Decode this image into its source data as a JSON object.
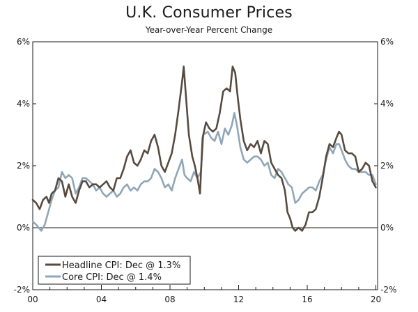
{
  "chart_data": {
    "type": "line",
    "title": "U.K. Consumer Prices",
    "subtitle": "Year-over-Year Percent Change",
    "xlabel": "",
    "ylabel": "",
    "xlim": [
      2000,
      2020.1
    ],
    "ylim": [
      -2,
      6
    ],
    "y_ticks": [
      6,
      4,
      2,
      0,
      -2
    ],
    "y_tick_labels": [
      "6%",
      "4%",
      "2%",
      "0%",
      "-2%"
    ],
    "x_ticks": [
      2000,
      2004,
      2008,
      2012,
      2016,
      2020
    ],
    "x_tick_labels": [
      "00",
      "04",
      "08",
      "12",
      "16",
      "20"
    ],
    "legend_position": "bottom-left",
    "series": [
      {
        "name": "Headline CPI: Dec @ 1.3%",
        "color": "#574a3f",
        "points": [
          [
            2000.0,
            0.9
          ],
          [
            2000.2,
            0.8
          ],
          [
            2000.4,
            0.6
          ],
          [
            2000.6,
            0.9
          ],
          [
            2000.8,
            1.0
          ],
          [
            2000.95,
            0.8
          ],
          [
            2001.1,
            1.1
          ],
          [
            2001.3,
            1.2
          ],
          [
            2001.5,
            1.6
          ],
          [
            2001.7,
            1.5
          ],
          [
            2001.9,
            1.0
          ],
          [
            2002.1,
            1.4
          ],
          [
            2002.3,
            1.0
          ],
          [
            2002.5,
            0.8
          ],
          [
            2002.7,
            1.2
          ],
          [
            2002.9,
            1.5
          ],
          [
            2003.1,
            1.5
          ],
          [
            2003.3,
            1.3
          ],
          [
            2003.5,
            1.4
          ],
          [
            2003.7,
            1.4
          ],
          [
            2003.9,
            1.3
          ],
          [
            2004.1,
            1.4
          ],
          [
            2004.3,
            1.5
          ],
          [
            2004.5,
            1.3
          ],
          [
            2004.7,
            1.2
          ],
          [
            2004.9,
            1.6
          ],
          [
            2005.1,
            1.6
          ],
          [
            2005.3,
            1.9
          ],
          [
            2005.5,
            2.3
          ],
          [
            2005.7,
            2.5
          ],
          [
            2005.9,
            2.1
          ],
          [
            2006.1,
            2.0
          ],
          [
            2006.3,
            2.2
          ],
          [
            2006.5,
            2.5
          ],
          [
            2006.7,
            2.4
          ],
          [
            2006.9,
            2.8
          ],
          [
            2007.1,
            3.0
          ],
          [
            2007.3,
            2.6
          ],
          [
            2007.5,
            2.0
          ],
          [
            2007.7,
            1.8
          ],
          [
            2007.9,
            2.1
          ],
          [
            2008.1,
            2.4
          ],
          [
            2008.3,
            3.0
          ],
          [
            2008.5,
            3.8
          ],
          [
            2008.7,
            4.7
          ],
          [
            2008.8,
            5.2
          ],
          [
            2008.95,
            4.1
          ],
          [
            2009.1,
            3.0
          ],
          [
            2009.3,
            2.3
          ],
          [
            2009.45,
            2.0
          ],
          [
            2009.6,
            1.6
          ],
          [
            2009.75,
            1.1
          ],
          [
            2009.9,
            2.9
          ],
          [
            2010.1,
            3.4
          ],
          [
            2010.3,
            3.2
          ],
          [
            2010.5,
            3.1
          ],
          [
            2010.7,
            3.2
          ],
          [
            2010.9,
            3.7
          ],
          [
            2011.1,
            4.4
          ],
          [
            2011.3,
            4.5
          ],
          [
            2011.5,
            4.4
          ],
          [
            2011.65,
            5.2
          ],
          [
            2011.8,
            5.0
          ],
          [
            2011.95,
            4.2
          ],
          [
            2012.1,
            3.5
          ],
          [
            2012.3,
            2.8
          ],
          [
            2012.5,
            2.5
          ],
          [
            2012.7,
            2.7
          ],
          [
            2012.9,
            2.6
          ],
          [
            2013.1,
            2.8
          ],
          [
            2013.3,
            2.4
          ],
          [
            2013.5,
            2.8
          ],
          [
            2013.7,
            2.7
          ],
          [
            2013.9,
            2.1
          ],
          [
            2014.1,
            1.9
          ],
          [
            2014.3,
            1.7
          ],
          [
            2014.5,
            1.6
          ],
          [
            2014.7,
            1.2
          ],
          [
            2014.85,
            0.5
          ],
          [
            2015.0,
            0.3
          ],
          [
            2015.15,
            0.0
          ],
          [
            2015.3,
            -0.1
          ],
          [
            2015.5,
            0.0
          ],
          [
            2015.7,
            -0.1
          ],
          [
            2015.9,
            0.1
          ],
          [
            2016.1,
            0.5
          ],
          [
            2016.3,
            0.5
          ],
          [
            2016.5,
            0.6
          ],
          [
            2016.7,
            1.0
          ],
          [
            2016.9,
            1.6
          ],
          [
            2017.1,
            2.3
          ],
          [
            2017.3,
            2.7
          ],
          [
            2017.5,
            2.6
          ],
          [
            2017.7,
            2.9
          ],
          [
            2017.85,
            3.1
          ],
          [
            2018.0,
            3.0
          ],
          [
            2018.2,
            2.5
          ],
          [
            2018.4,
            2.4
          ],
          [
            2018.6,
            2.4
          ],
          [
            2018.8,
            2.3
          ],
          [
            2019.0,
            1.8
          ],
          [
            2019.2,
            1.9
          ],
          [
            2019.4,
            2.1
          ],
          [
            2019.6,
            2.0
          ],
          [
            2019.8,
            1.5
          ],
          [
            2020.0,
            1.3
          ]
        ]
      },
      {
        "name": "Core CPI: Dec @ 1.4%",
        "color": "#8fa6b8",
        "points": [
          [
            2000.0,
            0.2
          ],
          [
            2000.2,
            0.1
          ],
          [
            2000.35,
            0.0
          ],
          [
            2000.5,
            -0.1
          ],
          [
            2000.7,
            0.1
          ],
          [
            2000.9,
            0.5
          ],
          [
            2001.1,
            0.9
          ],
          [
            2001.3,
            1.2
          ],
          [
            2001.5,
            1.3
          ],
          [
            2001.7,
            1.8
          ],
          [
            2001.9,
            1.6
          ],
          [
            2002.1,
            1.7
          ],
          [
            2002.3,
            1.6
          ],
          [
            2002.5,
            1.1
          ],
          [
            2002.7,
            1.3
          ],
          [
            2002.9,
            1.6
          ],
          [
            2003.1,
            1.6
          ],
          [
            2003.3,
            1.5
          ],
          [
            2003.5,
            1.4
          ],
          [
            2003.7,
            1.2
          ],
          [
            2003.9,
            1.3
          ],
          [
            2004.1,
            1.1
          ],
          [
            2004.3,
            1.0
          ],
          [
            2004.5,
            1.1
          ],
          [
            2004.7,
            1.2
          ],
          [
            2004.9,
            1.0
          ],
          [
            2005.1,
            1.1
          ],
          [
            2005.3,
            1.3
          ],
          [
            2005.5,
            1.4
          ],
          [
            2005.7,
            1.2
          ],
          [
            2005.9,
            1.3
          ],
          [
            2006.1,
            1.2
          ],
          [
            2006.3,
            1.4
          ],
          [
            2006.5,
            1.5
          ],
          [
            2006.7,
            1.5
          ],
          [
            2006.9,
            1.6
          ],
          [
            2007.1,
            1.9
          ],
          [
            2007.3,
            1.8
          ],
          [
            2007.5,
            1.6
          ],
          [
            2007.7,
            1.3
          ],
          [
            2007.9,
            1.4
          ],
          [
            2008.1,
            1.2
          ],
          [
            2008.3,
            1.6
          ],
          [
            2008.5,
            1.9
          ],
          [
            2008.7,
            2.2
          ],
          [
            2008.85,
            1.7
          ],
          [
            2009.0,
            1.6
          ],
          [
            2009.2,
            1.5
          ],
          [
            2009.4,
            1.8
          ],
          [
            2009.6,
            1.6
          ],
          [
            2009.8,
            1.8
          ],
          [
            2009.95,
            3.0
          ],
          [
            2010.2,
            3.1
          ],
          [
            2010.4,
            2.9
          ],
          [
            2010.6,
            2.8
          ],
          [
            2010.8,
            3.1
          ],
          [
            2011.0,
            2.7
          ],
          [
            2011.2,
            3.2
          ],
          [
            2011.4,
            3.0
          ],
          [
            2011.6,
            3.3
          ],
          [
            2011.75,
            3.7
          ],
          [
            2011.9,
            3.3
          ],
          [
            2012.1,
            2.6
          ],
          [
            2012.3,
            2.2
          ],
          [
            2012.5,
            2.1
          ],
          [
            2012.7,
            2.2
          ],
          [
            2012.9,
            2.3
          ],
          [
            2013.1,
            2.3
          ],
          [
            2013.3,
            2.2
          ],
          [
            2013.5,
            2.0
          ],
          [
            2013.7,
            2.1
          ],
          [
            2013.9,
            1.7
          ],
          [
            2014.1,
            1.6
          ],
          [
            2014.3,
            1.9
          ],
          [
            2014.5,
            1.8
          ],
          [
            2014.7,
            1.6
          ],
          [
            2014.9,
            1.4
          ],
          [
            2015.1,
            1.3
          ],
          [
            2015.3,
            0.8
          ],
          [
            2015.5,
            0.9
          ],
          [
            2015.7,
            1.1
          ],
          [
            2015.9,
            1.2
          ],
          [
            2016.1,
            1.3
          ],
          [
            2016.3,
            1.3
          ],
          [
            2016.5,
            1.2
          ],
          [
            2016.7,
            1.5
          ],
          [
            2016.9,
            1.7
          ],
          [
            2017.1,
            2.2
          ],
          [
            2017.3,
            2.6
          ],
          [
            2017.5,
            2.4
          ],
          [
            2017.7,
            2.7
          ],
          [
            2017.85,
            2.7
          ],
          [
            2018.0,
            2.5
          ],
          [
            2018.2,
            2.2
          ],
          [
            2018.4,
            2.0
          ],
          [
            2018.6,
            1.9
          ],
          [
            2018.8,
            1.9
          ],
          [
            2019.0,
            1.8
          ],
          [
            2019.2,
            1.8
          ],
          [
            2019.4,
            1.8
          ],
          [
            2019.6,
            1.7
          ],
          [
            2019.8,
            1.7
          ],
          [
            2020.0,
            1.4
          ]
        ]
      }
    ]
  }
}
